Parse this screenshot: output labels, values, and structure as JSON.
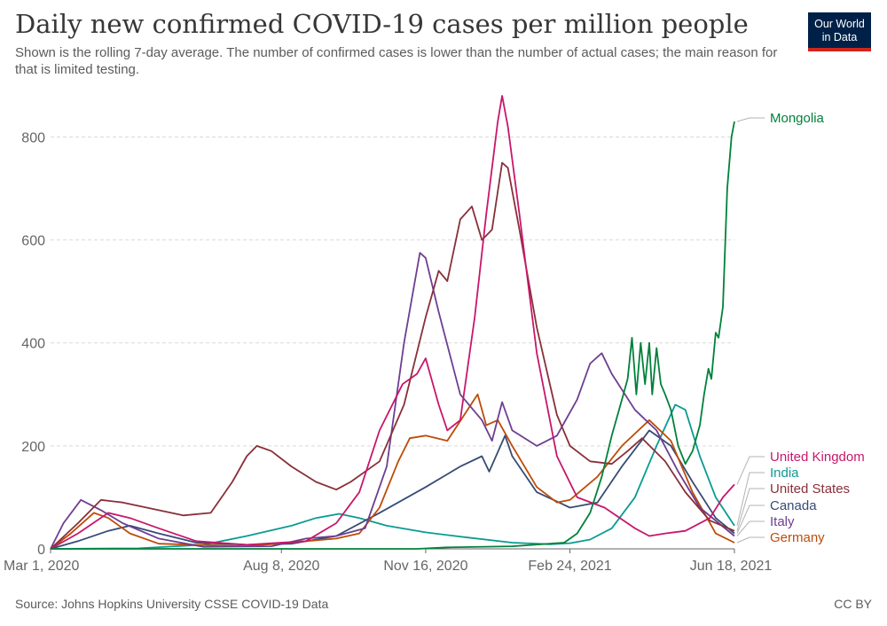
{
  "header": {
    "title": "Daily new confirmed COVID-19 cases per million people",
    "subtitle": "Shown is the rolling 7-day average. The number of confirmed cases is lower than the number of actual cases; the main reason for that is limited testing.",
    "logo_line1": "Our World",
    "logo_line2": "in Data"
  },
  "footer": {
    "source": "Source: Johns Hopkins University CSSE COVID-19 Data",
    "license": "CC BY"
  },
  "colors": {
    "Mongolia": "#00813b",
    "United Kingdom": "#c8166c",
    "India": "#0a9b94",
    "United States": "#883039",
    "Canada": "#374c73",
    "Italy": "#6d3e91",
    "Germany": "#bd4c08",
    "grid": "#d9d9d9",
    "axis": "#666666",
    "tick_text": "#666666"
  },
  "chart_data": {
    "type": "line",
    "title": "Daily new confirmed COVID-19 cases per million people",
    "xlim": [
      "2020-03-01",
      "2021-06-18"
    ],
    "ylim": [
      0,
      880
    ],
    "grid": true,
    "legend": "right",
    "x_ticks": [
      "2020-03-01",
      "2020-08-08",
      "2020-11-16",
      "2021-02-24",
      "2021-06-18"
    ],
    "x_tick_labels": [
      "Mar 1, 2020",
      "Aug 8, 2020",
      "Nov 16, 2020",
      "Feb 24, 2021",
      "Jun 18, 2021"
    ],
    "y_ticks": [
      0,
      200,
      400,
      600,
      800
    ],
    "y_tick_labels": [
      "0",
      "200",
      "400",
      "600",
      "800"
    ],
    "series": [
      {
        "name": "Mongolia",
        "points": [
          [
            "2020-03-01",
            0
          ],
          [
            "2020-11-10",
            0
          ],
          [
            "2020-12-01",
            3
          ],
          [
            "2021-01-15",
            5
          ],
          [
            "2021-02-20",
            12
          ],
          [
            "2021-03-01",
            30
          ],
          [
            "2021-03-10",
            70
          ],
          [
            "2021-03-18",
            140
          ],
          [
            "2021-03-25",
            220
          ],
          [
            "2021-03-30",
            270
          ],
          [
            "2021-04-02",
            300
          ],
          [
            "2021-04-05",
            330
          ],
          [
            "2021-04-08",
            410
          ],
          [
            "2021-04-11",
            300
          ],
          [
            "2021-04-14",
            400
          ],
          [
            "2021-04-17",
            320
          ],
          [
            "2021-04-20",
            400
          ],
          [
            "2021-04-22",
            300
          ],
          [
            "2021-04-25",
            390
          ],
          [
            "2021-04-28",
            320
          ],
          [
            "2021-05-01",
            300
          ],
          [
            "2021-05-05",
            270
          ],
          [
            "2021-05-10",
            200
          ],
          [
            "2021-05-15",
            165
          ],
          [
            "2021-05-20",
            190
          ],
          [
            "2021-05-25",
            240
          ],
          [
            "2021-05-28",
            300
          ],
          [
            "2021-05-31",
            350
          ],
          [
            "2021-06-02",
            330
          ],
          [
            "2021-06-05",
            420
          ],
          [
            "2021-06-07",
            410
          ],
          [
            "2021-06-10",
            470
          ],
          [
            "2021-06-13",
            700
          ],
          [
            "2021-06-16",
            800
          ],
          [
            "2021-06-18",
            830
          ]
        ]
      },
      {
        "name": "United Kingdom",
        "points": [
          [
            "2020-03-01",
            0
          ],
          [
            "2020-03-20",
            30
          ],
          [
            "2020-04-10",
            70
          ],
          [
            "2020-04-25",
            60
          ],
          [
            "2020-05-15",
            40
          ],
          [
            "2020-06-10",
            15
          ],
          [
            "2020-07-15",
            8
          ],
          [
            "2020-08-25",
            15
          ],
          [
            "2020-09-15",
            50
          ],
          [
            "2020-10-01",
            110
          ],
          [
            "2020-10-15",
            230
          ],
          [
            "2020-10-31",
            320
          ],
          [
            "2020-11-10",
            340
          ],
          [
            "2020-11-16",
            370
          ],
          [
            "2020-11-25",
            280
          ],
          [
            "2020-12-01",
            230
          ],
          [
            "2020-12-10",
            250
          ],
          [
            "2020-12-20",
            450
          ],
          [
            "2020-12-28",
            650
          ],
          [
            "2021-01-05",
            830
          ],
          [
            "2021-01-08",
            880
          ],
          [
            "2021-01-12",
            820
          ],
          [
            "2021-01-20",
            650
          ],
          [
            "2021-02-01",
            380
          ],
          [
            "2021-02-15",
            180
          ],
          [
            "2021-03-01",
            100
          ],
          [
            "2021-03-20",
            80
          ],
          [
            "2021-04-10",
            40
          ],
          [
            "2021-04-20",
            25
          ],
          [
            "2021-05-01",
            30
          ],
          [
            "2021-05-15",
            35
          ],
          [
            "2021-06-01",
            60
          ],
          [
            "2021-06-10",
            100
          ],
          [
            "2021-06-18",
            125
          ]
        ]
      },
      {
        "name": "India",
        "points": [
          [
            "2020-03-01",
            0
          ],
          [
            "2020-05-01",
            1
          ],
          [
            "2020-06-15",
            8
          ],
          [
            "2020-07-15",
            25
          ],
          [
            "2020-08-15",
            45
          ],
          [
            "2020-09-01",
            60
          ],
          [
            "2020-09-17",
            68
          ],
          [
            "2020-10-01",
            60
          ],
          [
            "2020-10-20",
            45
          ],
          [
            "2020-11-16",
            32
          ],
          [
            "2020-12-15",
            22
          ],
          [
            "2021-01-15",
            12
          ],
          [
            "2021-02-10",
            9
          ],
          [
            "2021-02-24",
            11
          ],
          [
            "2021-03-10",
            18
          ],
          [
            "2021-03-25",
            40
          ],
          [
            "2021-04-10",
            100
          ],
          [
            "2021-04-25",
            200
          ],
          [
            "2021-05-08",
            280
          ],
          [
            "2021-05-15",
            270
          ],
          [
            "2021-05-25",
            180
          ],
          [
            "2021-06-05",
            100
          ],
          [
            "2021-06-18",
            45
          ]
        ]
      },
      {
        "name": "United States",
        "points": [
          [
            "2020-03-01",
            0
          ],
          [
            "2020-03-20",
            50
          ],
          [
            "2020-04-05",
            95
          ],
          [
            "2020-04-20",
            90
          ],
          [
            "2020-05-15",
            75
          ],
          [
            "2020-06-01",
            65
          ],
          [
            "2020-06-20",
            70
          ],
          [
            "2020-07-05",
            130
          ],
          [
            "2020-07-15",
            180
          ],
          [
            "2020-07-22",
            200
          ],
          [
            "2020-08-01",
            190
          ],
          [
            "2020-08-15",
            160
          ],
          [
            "2020-09-01",
            130
          ],
          [
            "2020-09-15",
            115
          ],
          [
            "2020-09-25",
            130
          ],
          [
            "2020-10-15",
            170
          ],
          [
            "2020-11-01",
            280
          ],
          [
            "2020-11-16",
            450
          ],
          [
            "2020-11-25",
            540
          ],
          [
            "2020-12-01",
            520
          ],
          [
            "2020-12-10",
            640
          ],
          [
            "2020-12-18",
            665
          ],
          [
            "2020-12-25",
            600
          ],
          [
            "2021-01-01",
            620
          ],
          [
            "2021-01-08",
            750
          ],
          [
            "2021-01-12",
            740
          ],
          [
            "2021-01-20",
            620
          ],
          [
            "2021-02-01",
            430
          ],
          [
            "2021-02-15",
            260
          ],
          [
            "2021-02-24",
            200
          ],
          [
            "2021-03-10",
            170
          ],
          [
            "2021-03-25",
            165
          ],
          [
            "2021-04-05",
            190
          ],
          [
            "2021-04-15",
            215
          ],
          [
            "2021-05-01",
            170
          ],
          [
            "2021-05-15",
            110
          ],
          [
            "2021-06-01",
            55
          ],
          [
            "2021-06-18",
            35
          ]
        ]
      },
      {
        "name": "Canada",
        "points": [
          [
            "2020-03-01",
            0
          ],
          [
            "2020-03-20",
            15
          ],
          [
            "2020-04-10",
            35
          ],
          [
            "2020-04-25",
            45
          ],
          [
            "2020-05-15",
            30
          ],
          [
            "2020-06-10",
            12
          ],
          [
            "2020-07-15",
            8
          ],
          [
            "2020-08-15",
            10
          ],
          [
            "2020-09-15",
            25
          ],
          [
            "2020-10-15",
            70
          ],
          [
            "2020-11-16",
            120
          ],
          [
            "2020-12-10",
            160
          ],
          [
            "2020-12-25",
            180
          ],
          [
            "2020-12-30",
            150
          ],
          [
            "2021-01-10",
            220
          ],
          [
            "2021-01-15",
            180
          ],
          [
            "2021-02-01",
            110
          ],
          [
            "2021-02-24",
            80
          ],
          [
            "2021-03-15",
            90
          ],
          [
            "2021-04-01",
            160
          ],
          [
            "2021-04-20",
            230
          ],
          [
            "2021-05-05",
            200
          ],
          [
            "2021-05-20",
            130
          ],
          [
            "2021-06-05",
            60
          ],
          [
            "2021-06-18",
            30
          ]
        ]
      },
      {
        "name": "Italy",
        "points": [
          [
            "2020-03-01",
            0
          ],
          [
            "2020-03-10",
            50
          ],
          [
            "2020-03-22",
            95
          ],
          [
            "2020-04-05",
            75
          ],
          [
            "2020-04-20",
            50
          ],
          [
            "2020-05-15",
            20
          ],
          [
            "2020-06-15",
            4
          ],
          [
            "2020-08-01",
            5
          ],
          [
            "2020-08-25",
            20
          ],
          [
            "2020-09-15",
            25
          ],
          [
            "2020-10-05",
            40
          ],
          [
            "2020-10-20",
            160
          ],
          [
            "2020-11-01",
            400
          ],
          [
            "2020-11-12",
            575
          ],
          [
            "2020-11-16",
            565
          ],
          [
            "2020-11-25",
            460
          ],
          [
            "2020-12-10",
            300
          ],
          [
            "2020-12-25",
            250
          ],
          [
            "2021-01-01",
            210
          ],
          [
            "2021-01-08",
            285
          ],
          [
            "2021-01-15",
            230
          ],
          [
            "2021-02-01",
            200
          ],
          [
            "2021-02-15",
            220
          ],
          [
            "2021-03-01",
            290
          ],
          [
            "2021-03-10",
            360
          ],
          [
            "2021-03-18",
            380
          ],
          [
            "2021-03-25",
            340
          ],
          [
            "2021-04-10",
            270
          ],
          [
            "2021-04-25",
            230
          ],
          [
            "2021-05-10",
            150
          ],
          [
            "2021-05-25",
            80
          ],
          [
            "2021-06-18",
            25
          ]
        ]
      },
      {
        "name": "Germany",
        "points": [
          [
            "2020-03-01",
            0
          ],
          [
            "2020-03-15",
            30
          ],
          [
            "2020-03-31",
            70
          ],
          [
            "2020-04-10",
            60
          ],
          [
            "2020-04-25",
            30
          ],
          [
            "2020-05-15",
            10
          ],
          [
            "2020-07-15",
            5
          ],
          [
            "2020-08-25",
            15
          ],
          [
            "2020-09-15",
            20
          ],
          [
            "2020-10-01",
            30
          ],
          [
            "2020-10-15",
            80
          ],
          [
            "2020-10-28",
            170
          ],
          [
            "2020-11-05",
            215
          ],
          [
            "2020-11-16",
            220
          ],
          [
            "2020-12-01",
            210
          ],
          [
            "2020-12-15",
            270
          ],
          [
            "2020-12-22",
            300
          ],
          [
            "2020-12-28",
            240
          ],
          [
            "2021-01-05",
            250
          ],
          [
            "2021-01-15",
            200
          ],
          [
            "2021-02-01",
            120
          ],
          [
            "2021-02-15",
            90
          ],
          [
            "2021-02-24",
            95
          ],
          [
            "2021-03-15",
            140
          ],
          [
            "2021-04-01",
            200
          ],
          [
            "2021-04-20",
            250
          ],
          [
            "2021-05-05",
            210
          ],
          [
            "2021-05-20",
            110
          ],
          [
            "2021-06-05",
            30
          ],
          [
            "2021-06-18",
            12
          ]
        ]
      }
    ]
  }
}
